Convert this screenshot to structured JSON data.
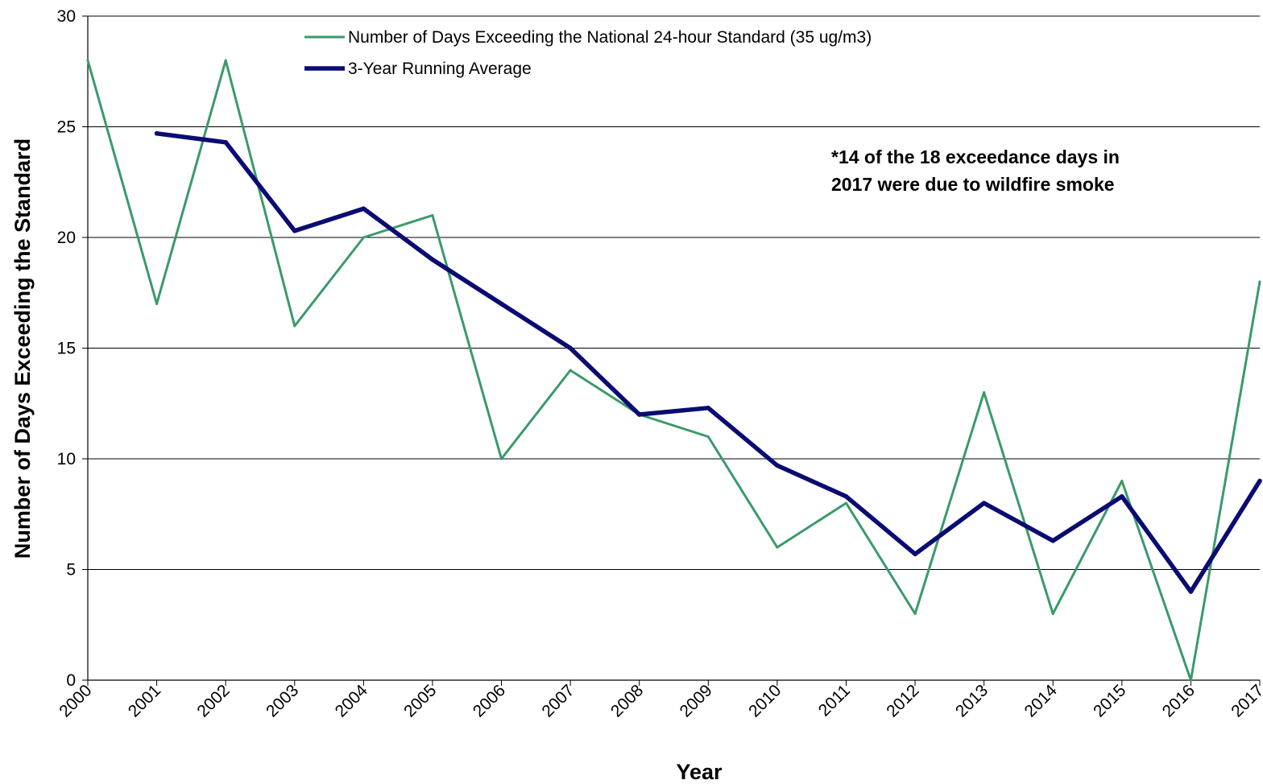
{
  "chart_data": {
    "type": "line",
    "xlabel": "Year",
    "ylabel": "Number of Days Exceeding the Standard",
    "ylim": [
      0,
      30
    ],
    "yticks": [
      0,
      5,
      10,
      15,
      20,
      25,
      30
    ],
    "categories": [
      "2000",
      "2001",
      "2002",
      "2003",
      "2004",
      "2005",
      "2006",
      "2007",
      "2008",
      "2009",
      "2010",
      "2011",
      "2012",
      "2013",
      "2014",
      "2015",
      "2016",
      "2017"
    ],
    "grid": "horizontal",
    "legend_position": "top",
    "series": [
      {
        "name": "Number of Days Exceeding the National 24-hour Standard (35 ug/m3)",
        "color": "#3a9a6a",
        "values": [
          28,
          17,
          28,
          16,
          20,
          21,
          10,
          14,
          12,
          11,
          6,
          8,
          3,
          13,
          3,
          9,
          0,
          18
        ]
      },
      {
        "name": "3-Year Running Average",
        "color": "#0b0b73",
        "values": [
          null,
          24.7,
          24.3,
          20.3,
          21.3,
          19,
          17,
          15,
          12,
          12.3,
          9.7,
          8.3,
          5.7,
          8,
          6.3,
          8.3,
          4,
          9
        ]
      }
    ],
    "annotation": [
      "*14 of the 18 exceedance days in",
      "2017 were due to wildfire smoke"
    ]
  }
}
